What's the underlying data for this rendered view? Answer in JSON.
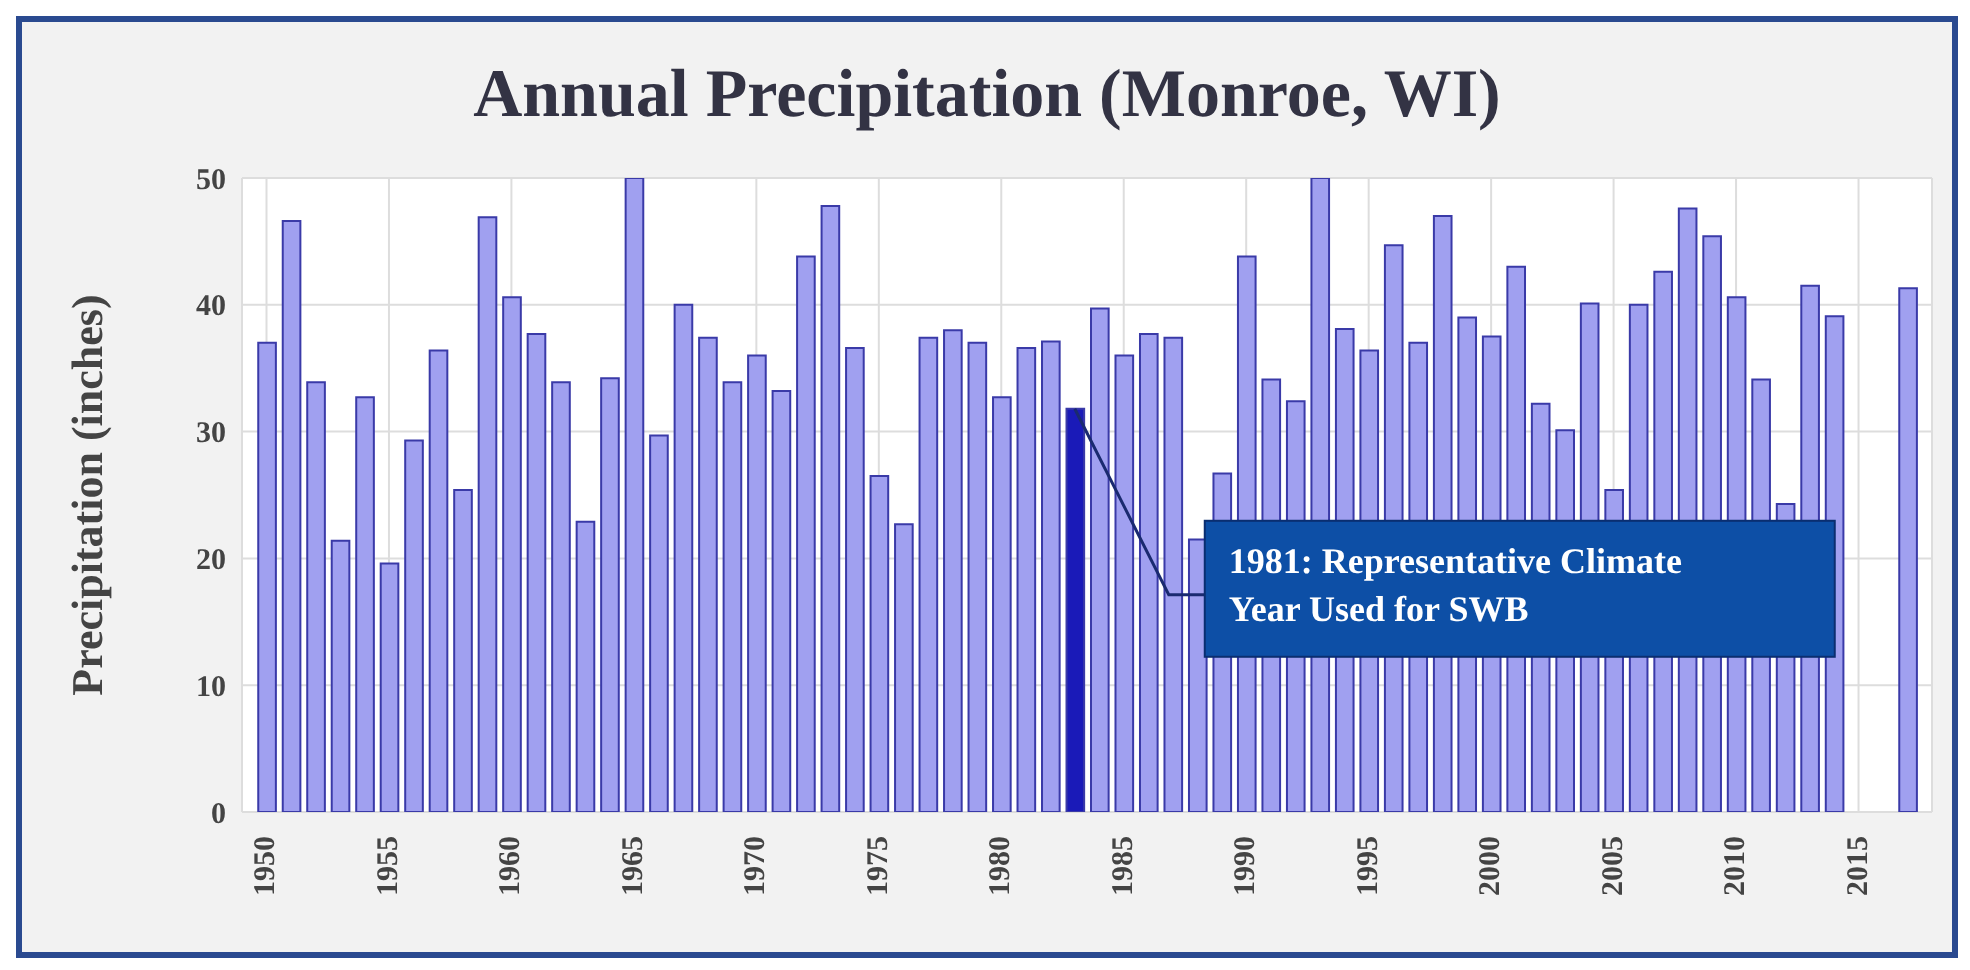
{
  "chart_data": {
    "type": "bar",
    "title": "Annual Precipitation (Monroe, WI)",
    "ylabel": "Precipitation (inches)",
    "x": [
      1950,
      1951,
      1952,
      1953,
      1954,
      1955,
      1956,
      1957,
      1958,
      1959,
      1960,
      1961,
      1962,
      1963,
      1964,
      1965,
      1966,
      1967,
      1968,
      1969,
      1970,
      1971,
      1972,
      1973,
      1974,
      1975,
      1976,
      1977,
      1978,
      1979,
      1980,
      1981,
      1982,
      1983,
      1984,
      1985,
      1986,
      1987,
      1988,
      1989,
      1990,
      1991,
      1992,
      1993,
      1994,
      1995,
      1996,
      1997,
      1998,
      1999,
      2000,
      2001,
      2002,
      2003,
      2004,
      2005,
      2006,
      2007,
      2008,
      2009,
      2010,
      2011,
      2012,
      2013,
      2014,
      2017
    ],
    "values": [
      37.0,
      46.6,
      33.9,
      21.4,
      32.7,
      19.6,
      29.3,
      36.4,
      25.4,
      46.9,
      40.6,
      37.7,
      33.9,
      22.9,
      34.2,
      50.0,
      29.7,
      40.0,
      37.4,
      33.9,
      36.0,
      33.2,
      43.8,
      47.8,
      36.6,
      26.5,
      22.7,
      37.4,
      38.0,
      37.0,
      32.7,
      36.6,
      37.1,
      31.8,
      39.7,
      36.0,
      37.7,
      37.4,
      21.5,
      26.7,
      43.8,
      34.1,
      32.4,
      50.0,
      38.1,
      36.4,
      44.7,
      37.0,
      47.0,
      39.0,
      37.5,
      43.0,
      32.2,
      30.1,
      40.1,
      25.4,
      40.0,
      42.6,
      47.6,
      45.4,
      40.6,
      34.1,
      24.3,
      41.5,
      39.1,
      41.3
    ],
    "colors": [
      "#a0a0f0",
      "#a0a0f0",
      "#a0a0f0",
      "#a0a0f0",
      "#a0a0f0",
      "#a0a0f0",
      "#a0a0f0",
      "#a0a0f0",
      "#a0a0f0",
      "#a0a0f0",
      "#a0a0f0",
      "#a0a0f0",
      "#a0a0f0",
      "#a0a0f0",
      "#a0a0f0",
      "#a0a0f0",
      "#a0a0f0",
      "#a0a0f0",
      "#a0a0f0",
      "#a0a0f0",
      "#a0a0f0",
      "#a0a0f0",
      "#a0a0f0",
      "#a0a0f0",
      "#a0a0f0",
      "#a0a0f0",
      "#a0a0f0",
      "#a0a0f0",
      "#a0a0f0",
      "#a0a0f0",
      "#a0a0f0",
      "#a0a0f0",
      "#a0a0f0",
      "#1a1ab8",
      "#a0a0f0",
      "#a0a0f0",
      "#a0a0f0",
      "#a0a0f0",
      "#a0a0f0",
      "#a0a0f0",
      "#a0a0f0",
      "#a0a0f0",
      "#a0a0f0",
      "#a0a0f0",
      "#a0a0f0",
      "#a0a0f0",
      "#a0a0f0",
      "#a0a0f0",
      "#a0a0f0",
      "#a0a0f0",
      "#a0a0f0",
      "#a0a0f0",
      "#a0a0f0",
      "#a0a0f0",
      "#a0a0f0",
      "#a0a0f0",
      "#a0a0f0",
      "#a0a0f0",
      "#a0a0f0",
      "#a0a0f0",
      "#a0a0f0",
      "#a0a0f0",
      "#a0a0f0",
      "#a0a0f0",
      "#a0a0f0",
      "#a0a0f0"
    ],
    "xlim": [
      1949,
      2018
    ],
    "xticks": [
      1950,
      1955,
      1960,
      1965,
      1970,
      1975,
      1980,
      1985,
      1990,
      1995,
      2000,
      2005,
      2010,
      2015
    ],
    "ylim": [
      0,
      50
    ],
    "yticks": [
      0,
      10,
      20,
      30,
      40,
      50
    ],
    "grid": true,
    "annotations": [
      {
        "text": "1981: Representative Climate Year Used for SWB",
        "x": 1983,
        "y": 31.8
      }
    ]
  }
}
